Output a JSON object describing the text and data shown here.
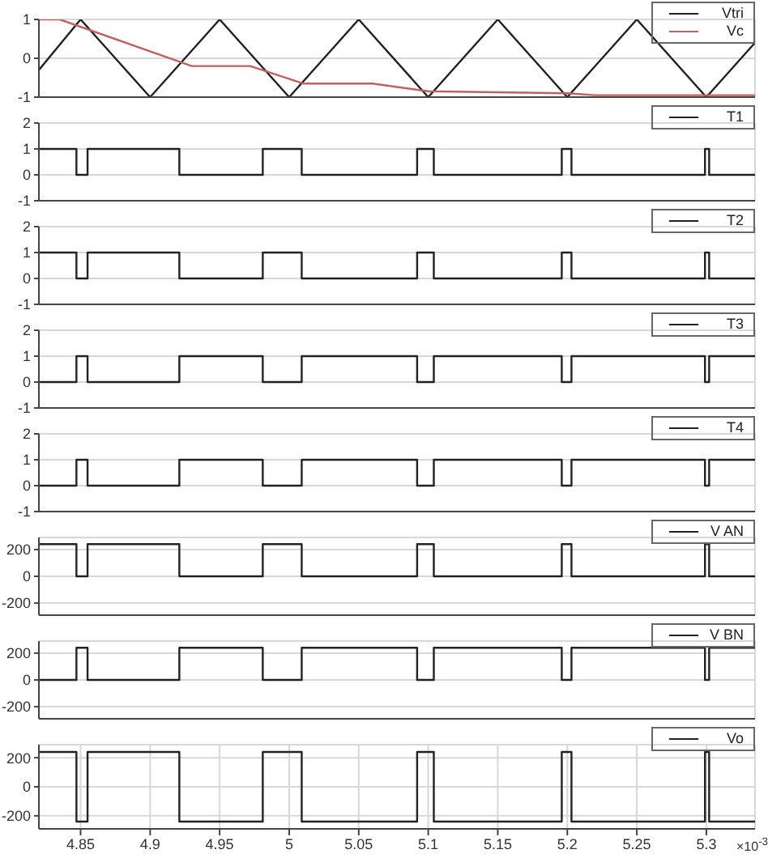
{
  "chart_data": [
    {
      "type": "line",
      "xlim": [
        4.82,
        5.335
      ],
      "xticks": [
        4.85,
        4.9,
        4.95,
        5,
        5.05,
        5.1,
        5.15,
        5.2,
        5.25,
        5.3
      ],
      "ylim": [
        -1,
        1
      ],
      "yticks": [
        -1,
        0,
        1
      ],
      "grid": true,
      "legend": "top right",
      "tick_labels": "y",
      "series": [
        {
          "name": "Vtri",
          "color": "#222222",
          "x": [
            4.82,
            4.85,
            4.9,
            4.95,
            5,
            5.05,
            5.1,
            5.15,
            5.2,
            5.25,
            5.3,
            5.335
          ],
          "values": [
            -0.3,
            1,
            -1,
            1,
            -1,
            1,
            -1,
            1,
            -1,
            1,
            -1,
            0.4
          ]
        },
        {
          "name": "Vc",
          "color": "#c06060",
          "x": [
            4.82,
            4.835,
            4.93,
            4.972,
            5.01,
            5.06,
            5.1,
            5.2,
            5.22,
            5.335
          ],
          "values": [
            1,
            1,
            -0.2,
            -0.2,
            -0.65,
            -0.65,
            -0.85,
            -0.9,
            -0.95,
            -0.95
          ]
        }
      ]
    },
    {
      "type": "step",
      "xlim": [
        4.82,
        5.335
      ],
      "xticks": [
        4.85,
        4.9,
        4.95,
        5,
        5.05,
        5.1,
        5.15,
        5.2,
        5.25,
        5.3
      ],
      "ylim": [
        -1,
        2
      ],
      "yticks": [
        -1,
        0,
        1,
        2
      ],
      "grid": true,
      "legend": "top right",
      "tick_labels": "y",
      "series": [
        {
          "name": "T1",
          "color": "#222222",
          "x": [
            4.82,
            4.847,
            4.855,
            4.921,
            4.981,
            5.009,
            5.092,
            5.104,
            5.196,
            5.203,
            5.299,
            5.302,
            5.335
          ],
          "values": [
            1,
            0,
            1,
            0,
            1,
            0,
            1,
            0,
            1,
            0,
            1,
            0,
            0
          ]
        }
      ]
    },
    {
      "type": "step",
      "xlim": [
        4.82,
        5.335
      ],
      "xticks": [
        4.85,
        4.9,
        4.95,
        5,
        5.05,
        5.1,
        5.15,
        5.2,
        5.25,
        5.3
      ],
      "ylim": [
        -1,
        2
      ],
      "yticks": [
        -1,
        0,
        1,
        2
      ],
      "grid": true,
      "legend": "top right",
      "tick_labels": "y",
      "series": [
        {
          "name": "T2",
          "color": "#222222",
          "x": [
            4.82,
            4.847,
            4.855,
            4.921,
            4.981,
            5.009,
            5.092,
            5.104,
            5.196,
            5.203,
            5.299,
            5.302,
            5.335
          ],
          "values": [
            1,
            0,
            1,
            0,
            1,
            0,
            1,
            0,
            1,
            0,
            1,
            0,
            0
          ]
        }
      ]
    },
    {
      "type": "step",
      "xlim": [
        4.82,
        5.335
      ],
      "xticks": [
        4.85,
        4.9,
        4.95,
        5,
        5.05,
        5.1,
        5.15,
        5.2,
        5.25,
        5.3
      ],
      "ylim": [
        -1,
        2
      ],
      "yticks": [
        -1,
        0,
        1,
        2
      ],
      "grid": true,
      "legend": "top right",
      "tick_labels": "y",
      "series": [
        {
          "name": "T3",
          "color": "#222222",
          "x": [
            4.82,
            4.847,
            4.855,
            4.921,
            4.981,
            5.009,
            5.092,
            5.104,
            5.196,
            5.203,
            5.299,
            5.302,
            5.335
          ],
          "values": [
            0,
            1,
            0,
            1,
            0,
            1,
            0,
            1,
            0,
            1,
            0,
            1,
            1
          ]
        }
      ]
    },
    {
      "type": "step",
      "xlim": [
        4.82,
        5.335
      ],
      "xticks": [
        4.85,
        4.9,
        4.95,
        5,
        5.05,
        5.1,
        5.15,
        5.2,
        5.25,
        5.3
      ],
      "ylim": [
        -1,
        2
      ],
      "yticks": [
        -1,
        0,
        1,
        2
      ],
      "grid": true,
      "legend": "top right",
      "tick_labels": "y",
      "series": [
        {
          "name": "T4",
          "color": "#222222",
          "x": [
            4.82,
            4.847,
            4.855,
            4.921,
            4.981,
            5.009,
            5.092,
            5.104,
            5.196,
            5.203,
            5.299,
            5.302,
            5.335
          ],
          "values": [
            0,
            1,
            0,
            1,
            0,
            1,
            0,
            1,
            0,
            1,
            0,
            1,
            1
          ]
        }
      ]
    },
    {
      "type": "step",
      "xlim": [
        4.82,
        5.335
      ],
      "xticks": [
        4.85,
        4.9,
        4.95,
        5,
        5.05,
        5.1,
        5.15,
        5.2,
        5.25,
        5.3
      ],
      "ylim": [
        -290,
        290
      ],
      "yticks": [
        -200,
        0,
        200
      ],
      "grid": true,
      "legend": "top right",
      "tick_labels": "y",
      "series": [
        {
          "name": "V AN",
          "color": "#222222",
          "x": [
            4.82,
            4.847,
            4.855,
            4.921,
            4.981,
            5.009,
            5.092,
            5.104,
            5.196,
            5.203,
            5.299,
            5.302,
            5.335
          ],
          "values": [
            240,
            0,
            240,
            0,
            240,
            0,
            240,
            0,
            240,
            0,
            240,
            0,
            0
          ]
        }
      ]
    },
    {
      "type": "step",
      "xlim": [
        4.82,
        5.335
      ],
      "xticks": [
        4.85,
        4.9,
        4.95,
        5,
        5.05,
        5.1,
        5.15,
        5.2,
        5.25,
        5.3
      ],
      "ylim": [
        -290,
        290
      ],
      "yticks": [
        -200,
        0,
        200
      ],
      "grid": true,
      "legend": "top right",
      "tick_labels": "y",
      "series": [
        {
          "name": "V BN",
          "color": "#222222",
          "x": [
            4.82,
            4.847,
            4.855,
            4.921,
            4.981,
            5.009,
            5.092,
            5.104,
            5.196,
            5.203,
            5.299,
            5.302,
            5.335
          ],
          "values": [
            0,
            240,
            0,
            240,
            0,
            240,
            0,
            240,
            0,
            240,
            0,
            240,
            240
          ]
        }
      ]
    },
    {
      "type": "step",
      "xlim": [
        4.82,
        5.335
      ],
      "xticks": [
        4.85,
        4.9,
        4.95,
        5,
        5.05,
        5.1,
        5.15,
        5.2,
        5.25,
        5.3
      ],
      "ylim": [
        -290,
        290
      ],
      "yticks": [
        -200,
        0,
        200
      ],
      "grid": true,
      "legend": "top right",
      "annotations": [
        "×10$^{-3}$"
      ],
      "series": [
        {
          "name": "Vo",
          "color": "#222222",
          "x": [
            4.82,
            4.847,
            4.855,
            4.921,
            4.981,
            5.009,
            5.092,
            5.104,
            5.196,
            5.203,
            5.299,
            5.302,
            5.335
          ],
          "values": [
            240,
            -240,
            240,
            -240,
            240,
            -240,
            240,
            -240,
            240,
            -240,
            240,
            -240,
            -240
          ]
        }
      ]
    }
  ]
}
